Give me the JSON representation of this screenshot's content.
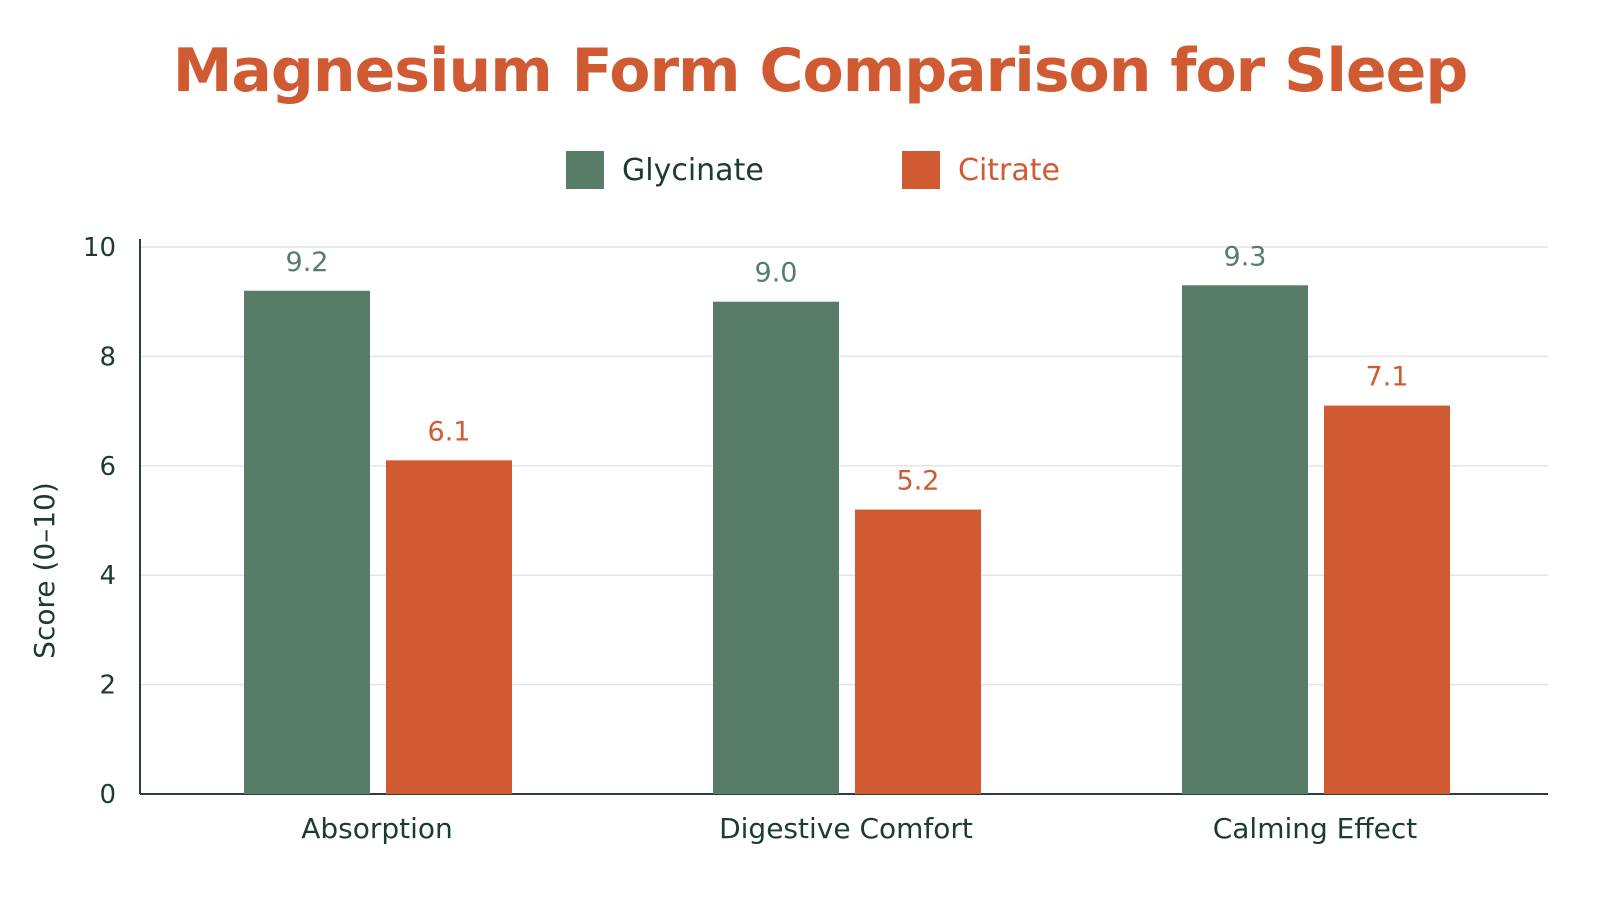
{
  "chart_data": {
    "type": "bar",
    "title": "Magnesium Form Comparison for Sleep",
    "xlabel": "",
    "ylabel": "Score (0–10)",
    "ylim": [
      0,
      10
    ],
    "yticks": [
      0,
      2,
      4,
      6,
      8,
      10
    ],
    "grid": true,
    "legend_position": "top-center",
    "categories": [
      "Absorption",
      "Digestive Comfort",
      "Calming Effect"
    ],
    "series": [
      {
        "name": "Glycinate",
        "values": [
          9.2,
          9.0,
          9.3
        ],
        "color": "#577d69"
      },
      {
        "name": "Citrate",
        "values": [
          6.1,
          5.2,
          7.1
        ],
        "color": "#d05a32"
      }
    ]
  },
  "colors": {
    "title": "#d05a32",
    "axis_text": "#1e3b32",
    "axis_line": "#2a3f38",
    "grid": "#e4e4e4"
  }
}
